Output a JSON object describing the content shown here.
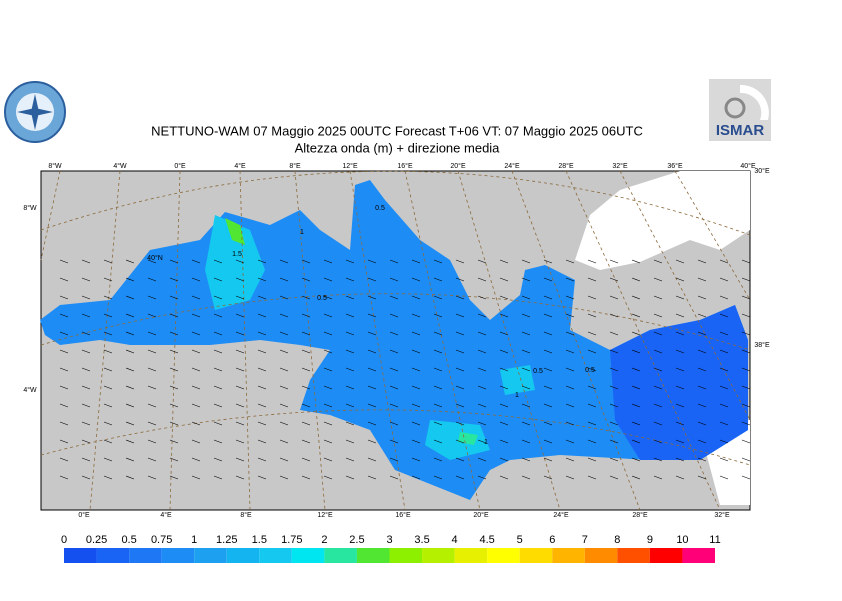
{
  "header": {
    "title": "NETTUNO-WAM  07   Maggio  2025 00UTC Forecast T+06 VT: 07   Maggio  2025 06UTC",
    "subtitle": "Altezza onda (m) + direzione media",
    "logo_right": "ISMAR"
  },
  "map": {
    "top_lon_labels": [
      "8°W",
      "4°W",
      "0°E",
      "4°E",
      "8°E",
      "12°E",
      "16°E",
      "20°E",
      "24°E",
      "28°E",
      "32°E",
      "36°E",
      "40°E"
    ],
    "bottom_lon_labels": [
      "0°E",
      "4°E",
      "8°E",
      "12°E",
      "16°E",
      "20°E",
      "24°E",
      "28°E",
      "32°E"
    ],
    "left_lat_labels": [
      "8°W",
      "40°N",
      "4°W"
    ],
    "right_lat_labels": [
      "30°E",
      "38°E"
    ],
    "contour_labels": [
      "0.5",
      "1.5",
      "1",
      "0.5",
      "0.5",
      "0.5",
      "1",
      "1"
    ]
  },
  "colorbar": {
    "ticks": [
      0,
      0.25,
      0.5,
      0.75,
      1,
      1.25,
      1.5,
      1.75,
      2,
      2.5,
      3,
      3.5,
      4,
      4.5,
      5,
      6,
      7,
      8,
      9,
      10,
      11
    ],
    "colors": [
      "#1450f0",
      "#1a64f5",
      "#1e78f5",
      "#1e8cf5",
      "#1ea0f0",
      "#14b4f0",
      "#14c8f0",
      "#00e6f0",
      "#28e6a0",
      "#50e632",
      "#8cf000",
      "#b4f000",
      "#e6f000",
      "#ffff00",
      "#ffdc00",
      "#ffb400",
      "#ff8c00",
      "#ff5000",
      "#ff0000",
      "#ff0078",
      "#ff14c8"
    ]
  }
}
